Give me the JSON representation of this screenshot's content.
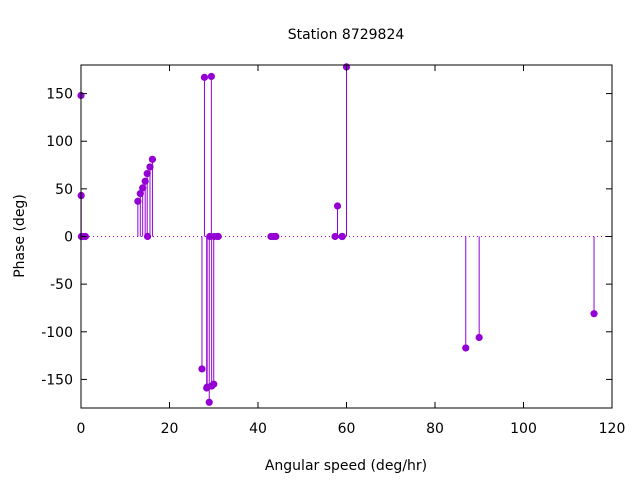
{
  "chart_data": {
    "type": "scatter",
    "style": "impulses-with-points",
    "title": "Station 8729824",
    "xlabel": "Angular speed (deg/hr)",
    "ylabel": "Phase (deg)",
    "xlim": [
      0,
      120
    ],
    "ylim": [
      -180,
      180
    ],
    "xticks": [
      0,
      20,
      40,
      60,
      80,
      100,
      120
    ],
    "yticks": [
      -150,
      -100,
      -50,
      0,
      50,
      100,
      150
    ],
    "zero_line": true,
    "grid": false,
    "color": "#9400d3",
    "series": [
      {
        "points": [
          {
            "x": 0.0,
            "y": 148
          },
          {
            "x": 0.04,
            "y": 43
          },
          {
            "x": 0.08,
            "y": 0
          },
          {
            "x": 0.5,
            "y": 0
          },
          {
            "x": 1.0,
            "y": 0
          },
          {
            "x": 12.85,
            "y": 37
          },
          {
            "x": 13.4,
            "y": 45
          },
          {
            "x": 13.94,
            "y": 51
          },
          {
            "x": 14.5,
            "y": 58
          },
          {
            "x": 14.96,
            "y": 66
          },
          {
            "x": 15.04,
            "y": 0
          },
          {
            "x": 15.59,
            "y": 73
          },
          {
            "x": 16.14,
            "y": 81
          },
          {
            "x": 27.34,
            "y": -139
          },
          {
            "x": 27.9,
            "y": 167
          },
          {
            "x": 28.4,
            "y": -159
          },
          {
            "x": 28.51,
            "y": -158
          },
          {
            "x": 28.98,
            "y": -174
          },
          {
            "x": 29.1,
            "y": 0
          },
          {
            "x": 29.46,
            "y": 168
          },
          {
            "x": 29.53,
            "y": -157
          },
          {
            "x": 30.0,
            "y": -155
          },
          {
            "x": 30.08,
            "y": 0
          },
          {
            "x": 30.82,
            "y": 0
          },
          {
            "x": 31.02,
            "y": 0
          },
          {
            "x": 42.93,
            "y": 0
          },
          {
            "x": 43.48,
            "y": 0
          },
          {
            "x": 44.03,
            "y": 0
          },
          {
            "x": 57.42,
            "y": 0
          },
          {
            "x": 57.97,
            "y": 32
          },
          {
            "x": 58.98,
            "y": 0
          },
          {
            "x": 59.07,
            "y": 0
          },
          {
            "x": 60.0,
            "y": 178
          },
          {
            "x": 86.95,
            "y": -117
          },
          {
            "x": 89.98,
            "y": -106
          },
          {
            "x": 115.94,
            "y": -81
          }
        ]
      }
    ]
  }
}
